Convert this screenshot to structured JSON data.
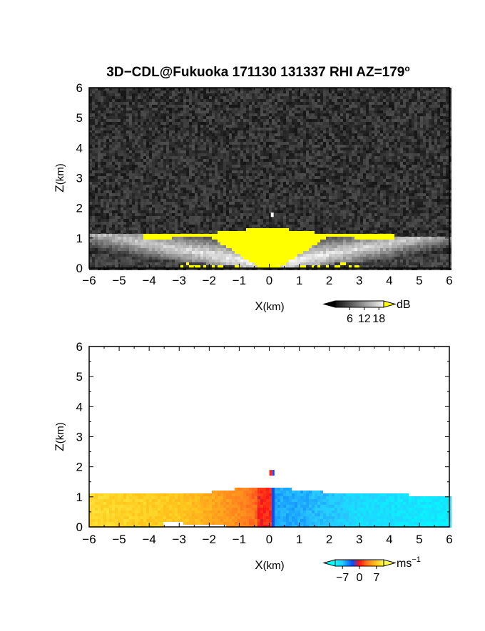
{
  "title_main": "3D−CDL@Fukuoka 171130 131337 RHI AZ=179",
  "title_sup": "o",
  "chart_data": [
    {
      "type": "heatmap",
      "variable": "intensity",
      "xlabel_main": "X",
      "xlabel_unit": "(km)",
      "ylabel_main": "Z",
      "ylabel_unit": "(km)",
      "xlim": [
        -6,
        6
      ],
      "ylim": [
        0,
        6
      ],
      "xticks": [
        "−6",
        "−5",
        "−4",
        "−3",
        "−2",
        "−1",
        "0",
        "1",
        "2",
        "3",
        "4",
        "5",
        "6"
      ],
      "yticks": [
        "0",
        "1",
        "2",
        "3",
        "4",
        "5",
        "6"
      ],
      "colorbar": {
        "ticks": [
          "6",
          "12",
          "18"
        ],
        "unit": "dB",
        "range": [
          0,
          20
        ],
        "saturation_color": "#ffff00"
      },
      "echo_top_km": [
        1.05,
        1.25
      ],
      "profile": {
        "x": [
          -6.0,
          -5.0,
          -4.0,
          -3.0,
          -2.5,
          -2.0,
          -1.5,
          -1.0,
          -0.5,
          0.0,
          0.5,
          1.0,
          2.0,
          3.0,
          4.0,
          5.0,
          6.0
        ],
        "top_km": [
          1.05,
          1.05,
          1.06,
          1.08,
          1.08,
          1.1,
          1.18,
          1.22,
          1.25,
          1.28,
          1.25,
          1.18,
          1.1,
          1.07,
          1.05,
          1.0,
          0.95
        ]
      },
      "colors": [
        "#000000",
        "#ffffff",
        "#ffff00"
      ]
    },
    {
      "type": "heatmap",
      "variable": "radial velocity",
      "xlabel_main": "X",
      "xlabel_unit": "(km)",
      "ylabel_main": "Z",
      "ylabel_unit": "(km)",
      "xlim": [
        -6,
        6
      ],
      "ylim": [
        0,
        6
      ],
      "xticks": [
        "−6",
        "−5",
        "−4",
        "−3",
        "−2",
        "−1",
        "0",
        "1",
        "2",
        "3",
        "4",
        "5",
        "6"
      ],
      "yticks": [
        "0",
        "1",
        "2",
        "3",
        "4",
        "5",
        "6"
      ],
      "colorbar": {
        "ticks": [
          "−7",
          "0",
          "7"
        ],
        "unit": "ms",
        "unit_sup": "−1",
        "range": [
          -10,
          10
        ]
      },
      "velocity_ms": {
        "x": [
          -6,
          -3,
          -1,
          -0.2,
          0.2,
          1,
          3,
          6
        ],
        "v": [
          8,
          7,
          4,
          2,
          -6,
          -6,
          -8,
          -9
        ]
      },
      "colors": [
        "#30d0ff",
        "#0040ff",
        "#ff3000",
        "#ffa020",
        "#ffe040"
      ]
    }
  ]
}
